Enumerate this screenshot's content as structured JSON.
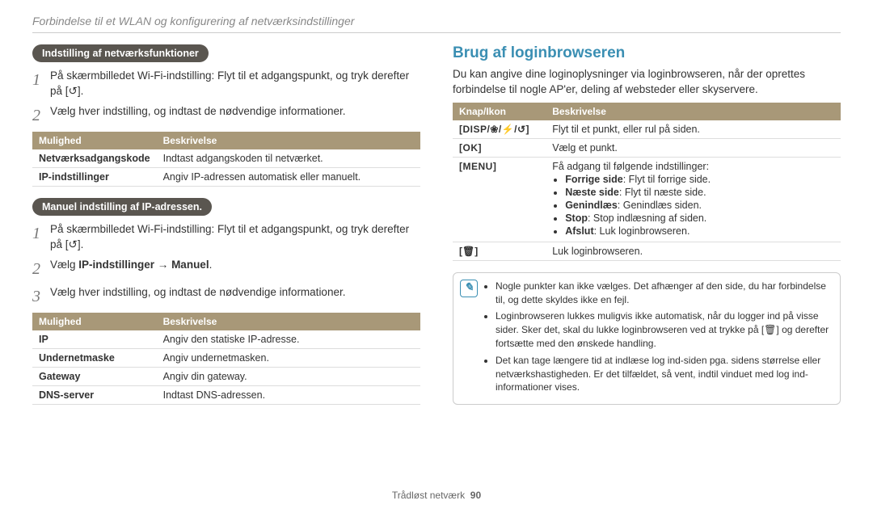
{
  "header": {
    "title": "Forbindelse til et WLAN og konfigurering af netværksindstillinger"
  },
  "left": {
    "pill1": "Indstilling af netværksfunktioner",
    "steps1": [
      "På skærmbilledet Wi-Fi-indstilling: Flyt til et adgangspunkt, og tryk derefter på [↺].",
      "Vælg hver indstilling, og indtast de nødvendige informationer."
    ],
    "table1": {
      "h1": "Mulighed",
      "h2": "Beskrivelse",
      "rows": [
        [
          "Netværksadgangskode",
          "Indtast adgangskoden til netværket."
        ],
        [
          "IP-indstillinger",
          "Angiv IP-adressen automatisk eller manuelt."
        ]
      ]
    },
    "pill2": "Manuel indstilling af IP-adressen.",
    "steps2": [
      "På skærmbilledet Wi-Fi-indstilling: Flyt til et adgangspunkt, og tryk derefter på [↺].",
      "Vælg IP-indstillinger → Manuel.",
      "Vælg hver indstilling, og indtast de nødvendige informationer."
    ],
    "table2": {
      "h1": "Mulighed",
      "h2": "Beskrivelse",
      "rows": [
        [
          "IP",
          "Angiv den statiske IP-adresse."
        ],
        [
          "Undernetmaske",
          "Angiv undernetmasken."
        ],
        [
          "Gateway",
          "Angiv din gateway."
        ],
        [
          "DNS-server",
          "Indtast DNS-adressen."
        ]
      ]
    }
  },
  "right": {
    "heading": "Brug af loginbrowseren",
    "intro": "Du kan angive dine loginoplysninger via loginbrowseren, når der oprettes forbindelse til nogle AP'er, deling af websteder eller skyservere.",
    "table": {
      "h1": "Knap/Ikon",
      "h2": "Beskrivelse",
      "rows": [
        {
          "icon": "[DISP/❀/⚡/↺]",
          "desc": "Flyt til et punkt, eller rul på siden."
        },
        {
          "icon": "[OK]",
          "desc": "Vælg et punkt."
        },
        {
          "icon": "[MENU]",
          "desc_lead": "Få adgang til følgende indstillinger:",
          "items": [
            {
              "b": "Forrige side",
              "t": ": Flyt til forrige side."
            },
            {
              "b": "Næste side",
              "t": ": Flyt til næste side."
            },
            {
              "b": "Genindlæs",
              "t": ": Genindlæs siden."
            },
            {
              "b": "Stop",
              "t": ": Stop indlæsning af siden."
            },
            {
              "b": "Afslut",
              "t": ": Luk loginbrowseren."
            }
          ]
        },
        {
          "icon": "[🗑]",
          "desc": "Luk loginbrowseren."
        }
      ]
    },
    "notes": [
      "Nogle punkter kan ikke vælges. Det afhænger af den side, du har forbindelse til, og dette skyldes ikke en fejl.",
      "Loginbrowseren lukkes muligvis ikke automatisk, når du logger ind på visse sider. Sker det, skal du lukke loginbrowseren ved at trykke på [🗑] og derefter fortsætte med den ønskede handling.",
      "Det kan tage længere tid at indlæse log ind-siden pga. sidens størrelse eller netværkshastigheden. Er det tilfældet, så vent, indtil vinduet med log ind-informationer vises."
    ]
  },
  "footer": {
    "text": "Trådløst netværk",
    "page": "90"
  }
}
